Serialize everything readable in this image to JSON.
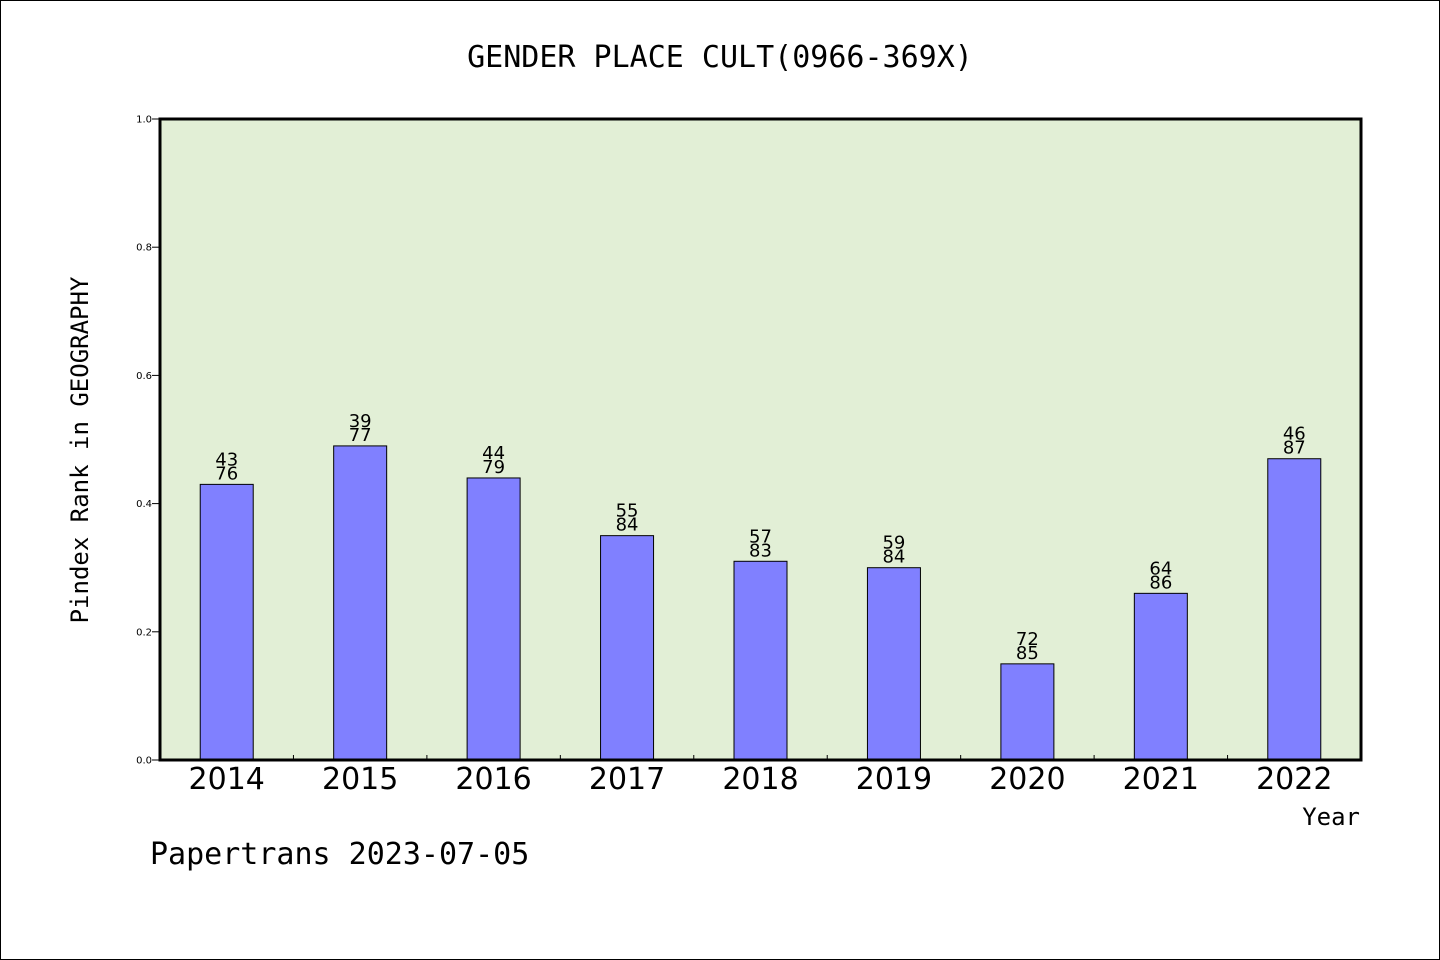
{
  "chart_data": {
    "type": "bar",
    "title": "GENDER PLACE CULT(0966-369X)",
    "xlabel": "Year",
    "ylabel": "Pindex Rank in GEOGRAPHY",
    "ylim": [
      0,
      1.0
    ],
    "yticks": [
      "0.0",
      "0.2",
      "0.4",
      "0.6",
      "0.8",
      "1.0"
    ],
    "grid": false,
    "legend": "none",
    "categories": [
      "2014",
      "2015",
      "2016",
      "2017",
      "2018",
      "2019",
      "2020",
      "2021",
      "2022"
    ],
    "values": [
      0.43,
      0.49,
      0.44,
      0.35,
      0.31,
      0.3,
      0.15,
      0.26,
      0.47
    ],
    "labels_top": [
      "43",
      "39",
      "44",
      "55",
      "57",
      "59",
      "72",
      "64",
      "46"
    ],
    "labels_bottom": [
      "76",
      "77",
      "79",
      "84",
      "83",
      "84",
      "85",
      "86",
      "87"
    ],
    "colors": {
      "bar_fill": "#8080ff",
      "bar_stroke": "#000000",
      "plot_background": "#e2efd6"
    }
  },
  "footer": {
    "text": "Papertrans 2023-07-05"
  }
}
